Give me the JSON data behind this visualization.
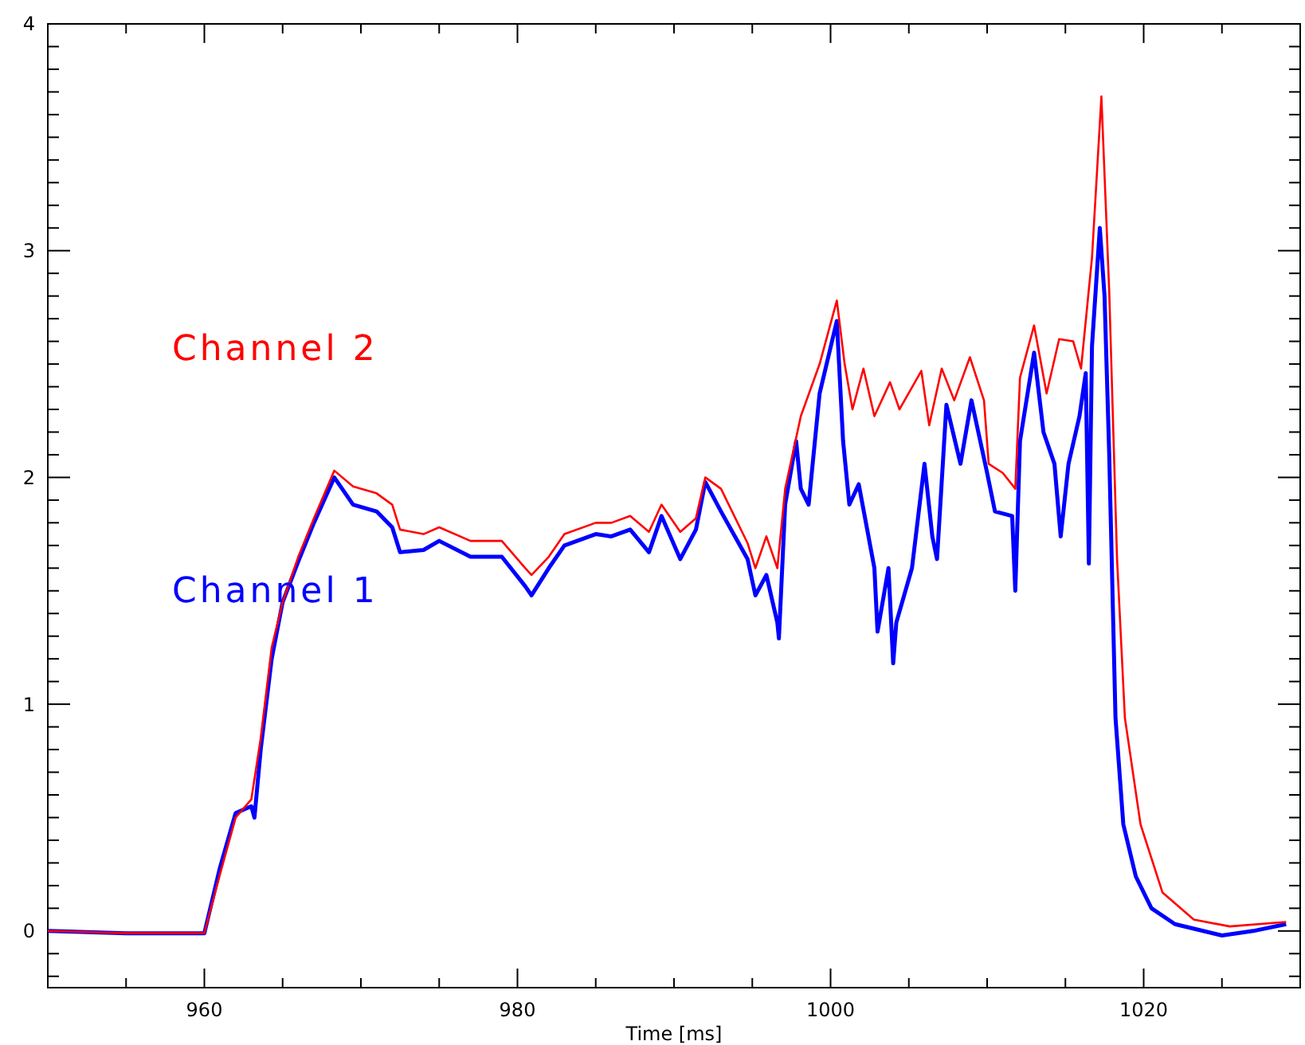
{
  "chart_data": {
    "type": "line",
    "xlabel": "Time [ms]",
    "xlim": [
      950,
      1030
    ],
    "ylim": [
      -0.25,
      4
    ],
    "xticks": [
      {
        "value": 955,
        "label": null
      },
      960,
      {
        "value": 965,
        "label": null
      },
      {
        "value": 970,
        "label": null
      },
      {
        "value": 975,
        "label": null
      },
      980,
      {
        "value": 985,
        "label": null
      },
      {
        "value": 990,
        "label": null
      },
      {
        "value": 995,
        "label": null
      },
      1000,
      {
        "value": 1005,
        "label": null
      },
      {
        "value": 1010,
        "label": null
      },
      {
        "value": 1015,
        "label": null
      },
      1020,
      {
        "value": 1025,
        "label": null
      }
    ],
    "yticks": [
      {
        "value": -0.2,
        "label": null
      },
      {
        "value": -0.1,
        "label": null
      },
      0,
      {
        "value": 0.1,
        "label": null
      },
      {
        "value": 0.2,
        "label": null
      },
      {
        "value": 0.3,
        "label": null
      },
      {
        "value": 0.4,
        "label": null
      },
      {
        "value": 0.5,
        "label": null
      },
      {
        "value": 0.6,
        "label": null
      },
      {
        "value": 0.7,
        "label": null
      },
      {
        "value": 0.8,
        "label": null
      },
      {
        "value": 0.9,
        "label": null
      },
      1,
      {
        "value": 1.1,
        "label": null
      },
      {
        "value": 1.2,
        "label": null
      },
      {
        "value": 1.3,
        "label": null
      },
      {
        "value": 1.4,
        "label": null
      },
      {
        "value": 1.5,
        "label": null
      },
      {
        "value": 1.6,
        "label": null
      },
      {
        "value": 1.7,
        "label": null
      },
      {
        "value": 1.8,
        "label": null
      },
      {
        "value": 1.9,
        "label": null
      },
      2,
      {
        "value": 2.1,
        "label": null
      },
      {
        "value": 2.2,
        "label": null
      },
      {
        "value": 2.3,
        "label": null
      },
      {
        "value": 2.4,
        "label": null
      },
      {
        "value": 2.5,
        "label": null
      },
      {
        "value": 2.6,
        "label": null
      },
      {
        "value": 2.7,
        "label": null
      },
      {
        "value": 2.8,
        "label": null
      },
      {
        "value": 2.9,
        "label": null
      },
      3,
      {
        "value": 3.1,
        "label": null
      },
      {
        "value": 3.2,
        "label": null
      },
      {
        "value": 3.3,
        "label": null
      },
      {
        "value": 3.4,
        "label": null
      },
      {
        "value": 3.5,
        "label": null
      },
      {
        "value": 3.6,
        "label": null
      },
      {
        "value": 3.7,
        "label": null
      },
      {
        "value": 3.8,
        "label": null
      },
      {
        "value": 3.9,
        "label": null
      },
      4
    ],
    "grid": false,
    "marker": "none",
    "line_style": "solid",
    "series": [
      {
        "name": "Channel 1",
        "color": "#0000ff",
        "x": [
          950,
          955,
          960,
          961,
          962,
          963,
          963.2,
          963.6,
          964.3,
          965,
          966,
          967,
          968.3,
          969.5,
          971,
          972,
          972.5,
          974,
          975,
          977,
          979,
          980.5,
          980.9,
          982,
          983,
          985,
          986,
          987.2,
          988.4,
          989.2,
          990.4,
          991.4,
          992,
          993,
          994.7,
          995.2,
          995.9,
          996.6,
          996.7,
          997.1,
          997.8,
          998.1,
          998.6,
          999.3,
          1000.4,
          1000.8,
          1001.2,
          1001.8,
          1002.8,
          1003,
          1003.7,
          1004,
          1004.2,
          1005.2,
          1006,
          1006.5,
          1006.8,
          1007.4,
          1008.3,
          1009,
          1010,
          1010.5,
          1011.6,
          1011.8,
          1012.1,
          1013,
          1013.6,
          1014.3,
          1014.7,
          1015.2,
          1015.9,
          1016.3,
          1016.5,
          1016.7,
          1017.2,
          1017.5,
          1017.8,
          1018.2,
          1018.7,
          1019.5,
          1020.5,
          1022,
          1025,
          1027,
          1029.1
        ],
        "values": [
          0,
          -0.01,
          -0.01,
          0.28,
          0.52,
          0.55,
          0.5,
          0.8,
          1.2,
          1.45,
          1.63,
          1.8,
          2,
          1.88,
          1.85,
          1.78,
          1.67,
          1.68,
          1.72,
          1.65,
          1.65,
          1.52,
          1.48,
          1.6,
          1.7,
          1.75,
          1.74,
          1.77,
          1.67,
          1.83,
          1.64,
          1.77,
          1.98,
          1.85,
          1.64,
          1.48,
          1.57,
          1.36,
          1.29,
          1.88,
          2.16,
          1.95,
          1.88,
          2.37,
          2.69,
          2.16,
          1.88,
          1.97,
          1.6,
          1.32,
          1.6,
          1.18,
          1.36,
          1.6,
          2.06,
          1.74,
          1.64,
          2.32,
          2.06,
          2.34,
          2.02,
          1.85,
          1.83,
          1.5,
          2.16,
          2.55,
          2.2,
          2.06,
          1.74,
          2.06,
          2.27,
          2.46,
          1.62,
          2.58,
          3.1,
          2.8,
          2.1,
          0.94,
          0.47,
          0.24,
          0.1,
          0.03,
          -0.02,
          0,
          0.03
        ]
      },
      {
        "name": "Channel 2",
        "color": "#ff0000",
        "x": [
          950,
          955,
          960,
          961,
          962,
          963,
          963.6,
          964.3,
          965,
          966,
          967,
          968.3,
          969.5,
          971,
          972,
          972.5,
          974,
          975,
          977,
          979,
          980.5,
          980.9,
          982,
          983,
          985,
          986,
          987.2,
          988.4,
          989.2,
          990.4,
          991.4,
          992,
          993,
          994.7,
          995.2,
          995.9,
          996.6,
          997.1,
          998.1,
          999.3,
          1000.4,
          1000.9,
          1001.4,
          1002.1,
          1002.8,
          1003.8,
          1004.4,
          1005.8,
          1006.3,
          1007.1,
          1007.9,
          1008.9,
          1009.8,
          1010.1,
          1011,
          1011.8,
          1012.1,
          1013,
          1013.8,
          1014.6,
          1015.5,
          1016,
          1016.7,
          1017.3,
          1017.8,
          1018.3,
          1018.8,
          1019.8,
          1021.2,
          1023.2,
          1025.5,
          1029.1
        ],
        "values": [
          0,
          -0.01,
          -0.01,
          0.25,
          0.5,
          0.58,
          0.85,
          1.25,
          1.45,
          1.65,
          1.82,
          2.03,
          1.96,
          1.93,
          1.88,
          1.77,
          1.75,
          1.78,
          1.72,
          1.72,
          1.6,
          1.57,
          1.65,
          1.75,
          1.8,
          1.8,
          1.83,
          1.76,
          1.88,
          1.76,
          1.82,
          2,
          1.95,
          1.71,
          1.6,
          1.74,
          1.6,
          1.95,
          2.27,
          2.5,
          2.78,
          2.5,
          2.3,
          2.48,
          2.27,
          2.42,
          2.3,
          2.47,
          2.23,
          2.48,
          2.34,
          2.53,
          2.34,
          2.06,
          2.02,
          1.95,
          2.44,
          2.67,
          2.37,
          2.61,
          2.6,
          2.48,
          2.97,
          3.68,
          2.82,
          1.64,
          0.94,
          0.47,
          0.17,
          0.05,
          0.02,
          0.04
        ]
      }
    ]
  }
}
